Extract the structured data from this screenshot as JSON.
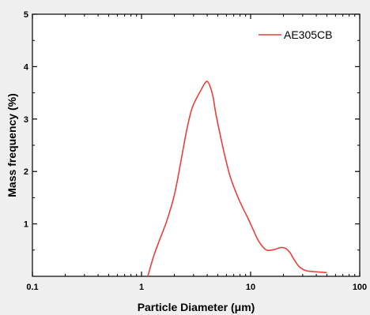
{
  "chart_data": {
    "type": "line",
    "xlabel": "Particle Diameter (μm)",
    "ylabel": "Mass frequency (%)",
    "x_scale": "log",
    "xlim": [
      0.1,
      100
    ],
    "ylim": [
      0,
      5
    ],
    "x_tick_labels": [
      "0.1",
      "1",
      "10",
      "100"
    ],
    "y_tick_labels": [
      "1",
      "2",
      "3",
      "4",
      "5"
    ],
    "legend_position": "top-right",
    "grid": false,
    "series": [
      {
        "name": "AE305CB",
        "color": "#e8413c",
        "x": [
          1.14,
          1.3,
          1.5,
          1.7,
          2.0,
          2.3,
          2.6,
          2.9,
          3.2,
          3.5,
          3.8,
          4.0,
          4.2,
          4.5,
          4.8,
          5.2,
          5.8,
          6.5,
          7.5,
          8.5,
          9.5,
          10.5,
          11.5,
          12.5,
          14.0,
          15.5,
          17.0,
          19.0,
          21.0,
          23.0,
          25.0,
          28.0,
          32.0,
          38.0,
          44.0,
          50.0
        ],
        "y": [
          0.0,
          0.4,
          0.75,
          1.05,
          1.55,
          2.2,
          2.8,
          3.2,
          3.4,
          3.55,
          3.68,
          3.72,
          3.65,
          3.45,
          3.1,
          2.75,
          2.3,
          1.9,
          1.55,
          1.3,
          1.1,
          0.9,
          0.72,
          0.6,
          0.5,
          0.5,
          0.52,
          0.55,
          0.53,
          0.45,
          0.32,
          0.18,
          0.11,
          0.09,
          0.08,
          0.07
        ]
      }
    ]
  }
}
